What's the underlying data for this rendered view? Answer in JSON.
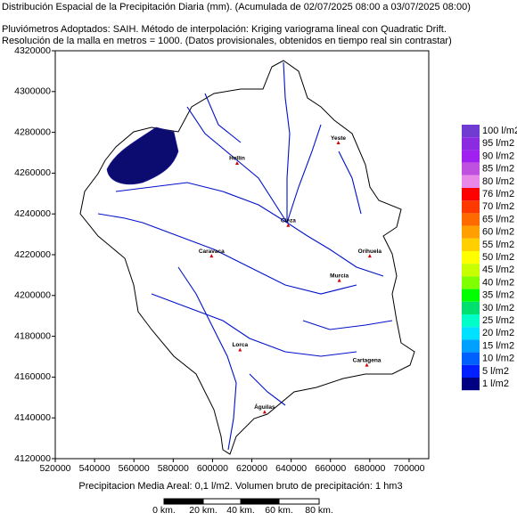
{
  "chart_data": {
    "type": "map",
    "title": "Distribución Espacial de la Precipitación Diaria (mm). (Acumulada de 02/07/2025 08:00 a 03/07/2025 08:00)",
    "subtitle": [
      "Pluviómetros Adoptados: SAIH.  Método de interpolación: Kriging variograma lineal con Quadratic Drift.",
      "Resolución de la malla en metros = 1000. (Datos provisionales, obtenidos en tiempo real sin contrastar)"
    ],
    "xlim": [
      520000,
      710000
    ],
    "ylim": [
      4120000,
      4320000
    ],
    "xticks": [
      520000,
      540000,
      560000,
      580000,
      600000,
      620000,
      640000,
      660000,
      680000,
      700000
    ],
    "yticks": [
      4120000,
      4140000,
      4160000,
      4180000,
      4200000,
      4220000,
      4240000,
      4260000,
      4280000,
      4300000,
      4320000
    ],
    "cities": [
      {
        "name": "Yeste",
        "x": 664000,
        "y": 4275000
      },
      {
        "name": "Hellín",
        "x": 612500,
        "y": 4265000
      },
      {
        "name": "Cieza",
        "x": 638500,
        "y": 4234500
      },
      {
        "name": "Caravaca",
        "x": 599500,
        "y": 4219500
      },
      {
        "name": "Orihuela",
        "x": 680000,
        "y": 4219500
      },
      {
        "name": "Murcia",
        "x": 664500,
        "y": 4207500
      },
      {
        "name": "Lorca",
        "x": 614000,
        "y": 4173500
      },
      {
        "name": "Cartagena",
        "x": 678500,
        "y": 4166000
      },
      {
        "name": "Águilas",
        "x": 626500,
        "y": 4143000
      }
    ],
    "legend": [
      {
        "label": "100 l/m2",
        "color": "#6f3bd1"
      },
      {
        "label": "95 l/m2",
        "color": "#8a2be2"
      },
      {
        "label": "90 l/m2",
        "color": "#a020f0"
      },
      {
        "label": "85 l/m2",
        "color": "#c050e0"
      },
      {
        "label": "80 l/m2",
        "color": "#e888e8"
      },
      {
        "label": "76 l/m2",
        "color": "#ff0000"
      },
      {
        "label": "70 l/m2",
        "color": "#ff3800"
      },
      {
        "label": "65 l/m2",
        "color": "#ff6a00"
      },
      {
        "label": "60 l/m2",
        "color": "#ffa000"
      },
      {
        "label": "55 l/m2",
        "color": "#ffd000"
      },
      {
        "label": "50 l/m2",
        "color": "#ffff00"
      },
      {
        "label": "45 l/m2",
        "color": "#c8ff00"
      },
      {
        "label": "40 l/m2",
        "color": "#80ff00"
      },
      {
        "label": "35 l/m2",
        "color": "#00ff00"
      },
      {
        "label": "30 l/m2",
        "color": "#00e070"
      },
      {
        "label": "25 l/m2",
        "color": "#00ffc8"
      },
      {
        "label": "20 l/m2",
        "color": "#00e0ff"
      },
      {
        "label": "15 l/m2",
        "color": "#00a0ff"
      },
      {
        "label": "10 l/m2",
        "color": "#0060ff"
      },
      {
        "label": "5 l/m2",
        "color": "#0020ff"
      },
      {
        "label": "1 l/m2",
        "color": "#000080"
      }
    ],
    "footer": "Precipitacion Media Areal: 0,1 l/m2. Volumen bruto de precipitación: 1 hm3",
    "scale_bar": [
      "0 km.",
      "20 km.",
      "40 km.",
      "60 km.",
      "80 km."
    ]
  }
}
